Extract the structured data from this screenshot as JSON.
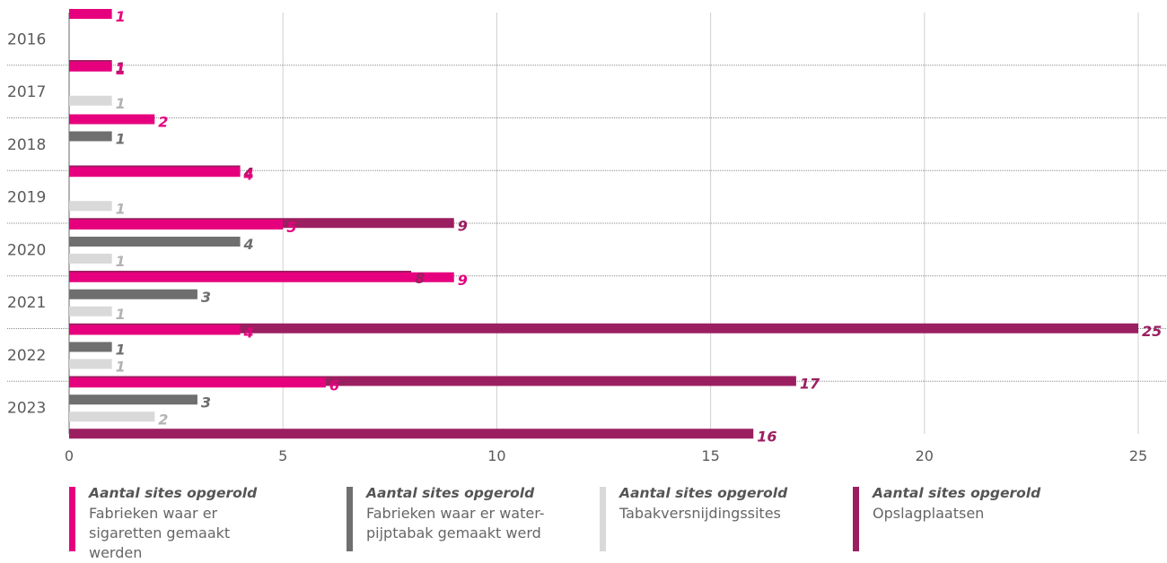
{
  "chart_data": {
    "type": "bar",
    "orientation": "horizontal",
    "categories": [
      "2016",
      "2017",
      "2018",
      "2019",
      "2020",
      "2021",
      "2022",
      "2023"
    ],
    "xlim": [
      0,
      25
    ],
    "x_ticks": [
      "0",
      "5",
      "10",
      "15",
      "20",
      "25"
    ],
    "grid": "vertical",
    "legend_position": "bottom",
    "series": [
      {
        "name": "Fabrieken waar er sigaretten gemaakt werden",
        "color": "#e6007e",
        "values": [
          1,
          1,
          2,
          4,
          5,
          9,
          4,
          6
        ]
      },
      {
        "name": "Fabrieken waar er waterpijptabak gemaakt werd",
        "color": "#6f6f6f",
        "values": [
          null,
          null,
          1,
          null,
          4,
          3,
          1,
          3
        ]
      },
      {
        "name": "Tabakversnijdingssites",
        "color": "#d9d9d9",
        "values": [
          null,
          1,
          null,
          1,
          1,
          1,
          1,
          2
        ]
      },
      {
        "name": "Opslagplaatsen",
        "color": "#9b1f60",
        "values": [
          1,
          null,
          4,
          9,
          8,
          25,
          17,
          16
        ]
      }
    ],
    "value_label_colors": [
      "#e6007e",
      "#6f6f6f",
      "#b3b3b3",
      "#9b1f60"
    ]
  },
  "legend": [
    {
      "title": "Aantal sites opgerold",
      "subtitle_lines": [
        "Fabrieken waar er",
        "sigaretten gemaakt werden"
      ],
      "color": "#e6007e"
    },
    {
      "title": "Aantal sites opgerold",
      "subtitle_lines": [
        "Fabrieken waar er water-",
        "pijptabak gemaakt werd"
      ],
      "color": "#6f6f6f"
    },
    {
      "title": "Aantal sites opgerold",
      "subtitle_lines": [
        "Tabakversnijdingssites"
      ],
      "color": "#d9d9d9"
    },
    {
      "title": "Aantal sites opgerold",
      "subtitle_lines": [
        "Opslagplaatsen"
      ],
      "color": "#9b1f60"
    }
  ]
}
